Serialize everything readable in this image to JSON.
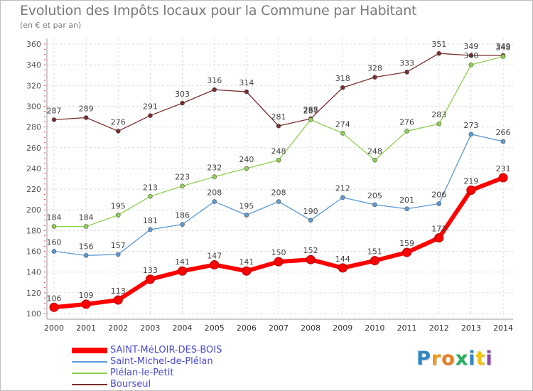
{
  "chart_data": {
    "type": "line",
    "title": "Evolution des Impôts locaux pour la Commune par Habitant",
    "subtitle": "(en € et par an)",
    "x": [
      "2000",
      "2001",
      "2002",
      "2003",
      "2004",
      "2005",
      "2006",
      "2007",
      "2008",
      "2009",
      "2010",
      "2011",
      "2012",
      "2013",
      "2014"
    ],
    "ylim": [
      100,
      360
    ],
    "yticks": [
      "100",
      "120",
      "140",
      "160",
      "180",
      "200",
      "220",
      "240",
      "260",
      "280",
      "300",
      "320",
      "340",
      "360"
    ],
    "grid": true,
    "legend_position": "bottom-left",
    "series": [
      {
        "name": "SAINT-MéLOIR-DES-BOIS",
        "color": "#ff0000",
        "values": [
          106,
          109,
          113,
          133,
          141,
          147,
          141,
          150,
          152,
          144,
          151,
          159,
          173,
          219,
          231
        ]
      },
      {
        "name": "Saint-Michel-de-Plélan",
        "color": "#5b9bd5",
        "values": [
          160,
          156,
          157,
          181,
          186,
          208,
          195,
          208,
          190,
          212,
          205,
          201,
          206,
          273,
          266
        ]
      },
      {
        "name": "Plélan-le-Petit",
        "color": "#8fd14f",
        "values": [
          184,
          184,
          195,
          213,
          223,
          232,
          240,
          248,
          287,
          274,
          248,
          276,
          283,
          340,
          348
        ]
      },
      {
        "name": "Bourseul",
        "color": "#7b2d2d",
        "values": [
          287,
          289,
          276,
          291,
          303,
          316,
          314,
          281,
          288,
          318,
          328,
          333,
          351,
          349,
          349
        ]
      }
    ]
  },
  "brand": {
    "letters": [
      "P",
      "r",
      "o",
      "x",
      "i",
      "t",
      "i"
    ],
    "colors": [
      "#2e86c1",
      "#f39c12",
      "#e67e22",
      "#27ae60",
      "#2e86c1",
      "#f1c40f",
      "#8e44ad"
    ]
  }
}
